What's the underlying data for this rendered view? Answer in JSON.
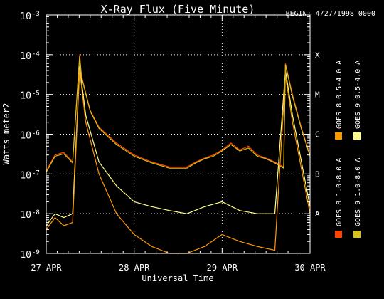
{
  "chart_data": {
    "type": "line",
    "title": "X-Ray Flux (Five Minute)",
    "begin_label": "BEGIN: 4/27/1998 0000",
    "xlabel": "Universal Time",
    "ylabel": "Watts meter2",
    "x_ticks": [
      "27 APR",
      "28 APR",
      "29 APR",
      "30 APR"
    ],
    "xlim_days": [
      27,
      30
    ],
    "yscale": "log",
    "ylim": [
      1e-09,
      0.001
    ],
    "y_tick_bases": [
      "10",
      "10",
      "10",
      "10",
      "10",
      "10",
      "10"
    ],
    "y_tick_exponents": [
      "-9",
      "-8",
      "-7",
      "-6",
      "-5",
      "-4",
      "-3"
    ],
    "flare_classes": [
      {
        "label": "X",
        "value": 0.0001
      },
      {
        "label": "M",
        "value": 1e-05
      },
      {
        "label": "C",
        "value": 1e-06
      },
      {
        "label": "B",
        "value": 1e-07
      },
      {
        "label": "A",
        "value": 1e-08
      }
    ],
    "grid": "dotted at day boundaries and class levels",
    "legend_placement": "right, vertical",
    "series": [
      {
        "name": "GOES 8 1.0-8.0 A",
        "color": "#ff4400",
        "x": [
          27.0,
          27.1,
          27.2,
          27.3,
          27.38,
          27.4,
          27.5,
          27.6,
          27.8,
          28.0,
          28.2,
          28.4,
          28.6,
          28.7,
          28.8,
          28.9,
          29.0,
          29.1,
          29.2,
          29.3,
          29.4,
          29.5,
          29.6,
          29.7,
          29.72,
          29.8,
          29.9,
          30.0
        ],
        "y": [
          1.2e-07,
          3e-07,
          3.5e-07,
          2e-07,
          0.0001,
          3e-05,
          4e-06,
          1.5e-06,
          6e-07,
          3e-07,
          2e-07,
          1.5e-07,
          1.5e-07,
          2e-07,
          2.5e-07,
          3e-07,
          4e-07,
          6e-07,
          4e-07,
          5e-07,
          3e-07,
          2.5e-07,
          2e-07,
          1.5e-07,
          6e-05,
          1e-05,
          1.5e-06,
          3e-07
        ]
      },
      {
        "name": "GOES 8 0.5-4.0 A",
        "color": "#ff9900",
        "x": [
          27.0,
          27.1,
          27.2,
          27.3,
          27.38,
          27.45,
          27.6,
          27.8,
          28.0,
          28.2,
          28.4,
          28.6,
          28.8,
          29.0,
          29.2,
          29.4,
          29.6,
          29.72,
          29.8,
          30.0
        ],
        "y": [
          4e-09,
          8e-09,
          5e-09,
          6e-09,
          4e-05,
          2e-06,
          1e-07,
          1e-08,
          3e-09,
          1.5e-09,
          1e-09,
          1e-09,
          1.5e-09,
          3e-09,
          2e-09,
          1.5e-09,
          1.2e-09,
          3e-05,
          2e-06,
          1e-08
        ]
      },
      {
        "name": "GOES 9 1.0-8.0 A",
        "color": "#d4c21c",
        "x": [
          27.0,
          27.1,
          27.2,
          27.3,
          27.38,
          27.4,
          27.5,
          27.6,
          27.8,
          28.0,
          28.2,
          28.4,
          28.6,
          28.7,
          28.8,
          28.9,
          29.0,
          29.1,
          29.2,
          29.3,
          29.4,
          29.5,
          29.6,
          29.7,
          29.72,
          29.8,
          29.9,
          30.0
        ],
        "y": [
          1.1e-07,
          2.8e-07,
          3.2e-07,
          1.9e-07,
          9e-05,
          2.8e-05,
          3.8e-06,
          1.4e-06,
          5.5e-07,
          2.8e-07,
          1.9e-07,
          1.4e-07,
          1.4e-07,
          1.9e-07,
          2.4e-07,
          2.8e-07,
          3.8e-07,
          5.5e-07,
          3.8e-07,
          4.5e-07,
          2.8e-07,
          2.4e-07,
          1.9e-07,
          1.4e-07,
          5.5e-05,
          9e-06,
          1.4e-06,
          2.8e-07
        ]
      },
      {
        "name": "GOES 9 0.5-4.0 A",
        "color": "#ffff88",
        "x": [
          27.0,
          27.1,
          27.2,
          27.3,
          27.38,
          27.45,
          27.6,
          27.8,
          28.0,
          28.2,
          28.4,
          28.6,
          28.8,
          29.0,
          29.2,
          29.4,
          29.6,
          29.72,
          29.8,
          30.0
        ],
        "y": [
          5e-09,
          1e-08,
          8e-09,
          1e-08,
          5e-05,
          3e-06,
          2e-07,
          5e-08,
          2e-08,
          1.5e-08,
          1.2e-08,
          1e-08,
          1.5e-08,
          2e-08,
          1.2e-08,
          1e-08,
          1e-08,
          4e-05,
          3e-06,
          1.5e-08
        ]
      }
    ]
  }
}
